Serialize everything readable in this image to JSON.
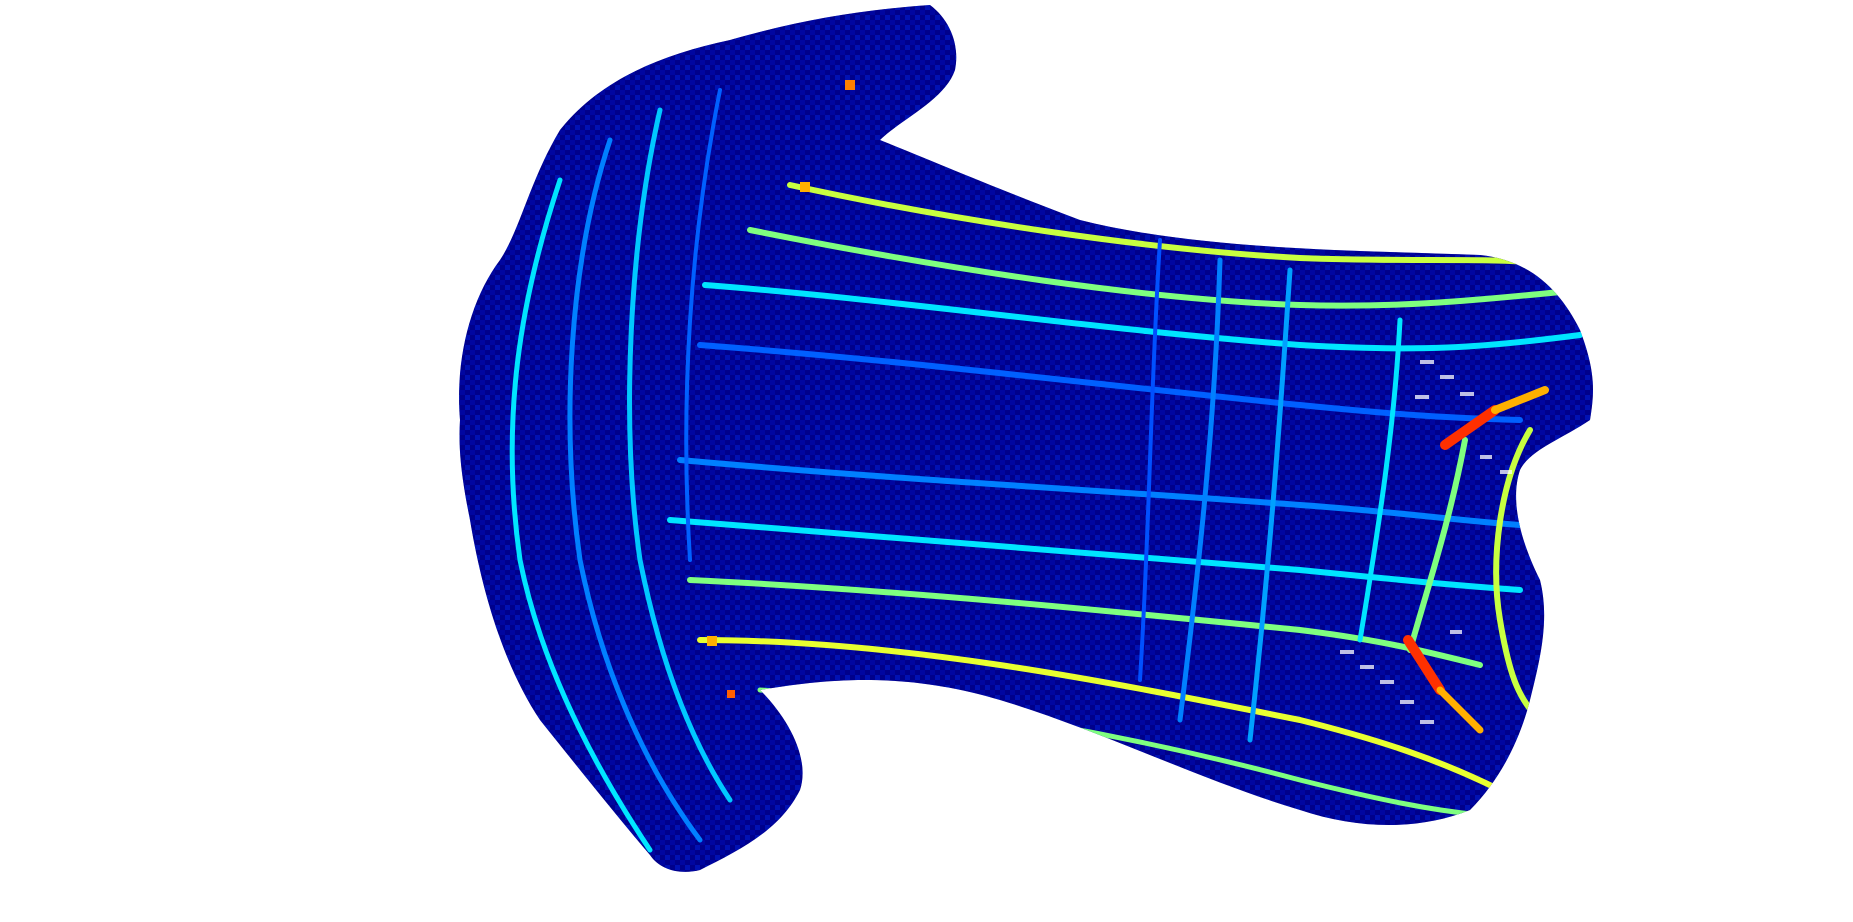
{
  "figure": {
    "background": "#ffffff",
    "surface_base_color": "#00008b",
    "colormap": [
      "#00008b",
      "#0000ff",
      "#0080ff",
      "#00e5ff",
      "#7fff7f",
      "#ffff00",
      "#ff8000",
      "#ff2000"
    ]
  }
}
